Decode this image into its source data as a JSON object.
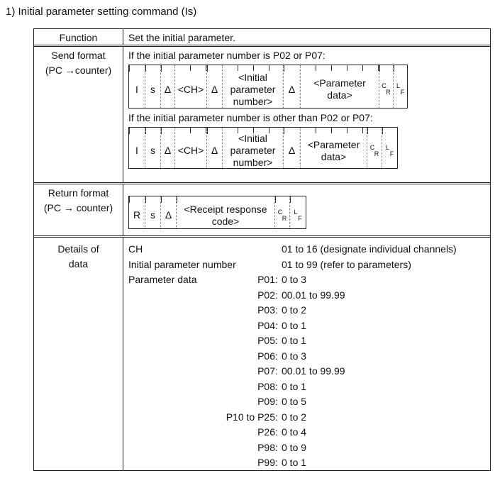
{
  "heading": "1)   Initial parameter setting command (Is)",
  "rows": {
    "function": {
      "label": "Function",
      "value": "Set the initial parameter."
    },
    "send": {
      "label1": "Send format",
      "label2": "(PC →counter)",
      "cond1": "If the initial parameter number is P02 or P07:",
      "cond2": "If the initial parameter number is other than P02 or P07:",
      "fields": {
        "i": "I",
        "s": "s",
        "d": "Δ",
        "ch": "<CH>",
        "init1": "<Initial",
        "init2": "parameter",
        "init3": "number>",
        "param1": "<Parameter",
        "param2": "data>",
        "cr1": "C",
        "cr2": "R",
        "lf1": "L",
        "lf2": "F"
      }
    },
    "return": {
      "label1": "Return format",
      "label2": "(PC → counter)",
      "fields": {
        "r": "R",
        "s": "s",
        "d": "Δ",
        "rc1": "<Receipt response",
        "rc2": "code>",
        "cr1": "C",
        "cr2": "R",
        "lf1": "L",
        "lf2": "F"
      }
    },
    "details": {
      "label1": "Details of",
      "label2": "data",
      "ch": {
        "name": "CH",
        "value": "01 to 16 (designate individual channels)"
      },
      "ipn": {
        "name": "Initial parameter number",
        "value": "01 to 99 (refer to parameters)"
      },
      "pd": "Parameter data",
      "params": [
        {
          "k": "P01",
          "v": "0 to 3"
        },
        {
          "k": "P02",
          "v": "00.01 to 99.99"
        },
        {
          "k": "P03",
          "v": "0 to 2"
        },
        {
          "k": "P04",
          "v": "0 to 1"
        },
        {
          "k": "P05",
          "v": "0 to 1"
        },
        {
          "k": "P06",
          "v": "0 to 3"
        },
        {
          "k": "P07",
          "v": "00.01 to 99.99"
        },
        {
          "k": "P08",
          "v": "0 to 1"
        },
        {
          "k": "P09",
          "v": "0 to 5"
        },
        {
          "k": "P10 to P25",
          "v": "0 to 2"
        },
        {
          "k": "P26",
          "v": "0 to 4"
        },
        {
          "k": "P98",
          "v": "0 to 9"
        },
        {
          "k": "P99",
          "v": "0 to 1"
        }
      ],
      "colon": ":"
    }
  }
}
